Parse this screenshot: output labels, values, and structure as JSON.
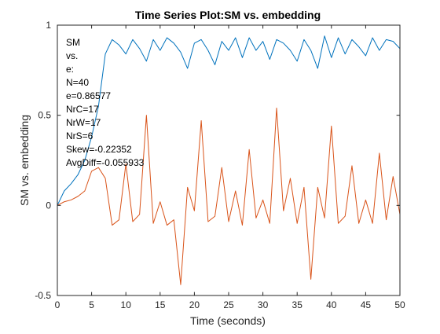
{
  "chart_data": {
    "type": "line",
    "title": "Time Series Plot:SM vs. embedding",
    "xlabel": "Time (seconds)",
    "ylabel": "SM vs. embedding",
    "xlim": [
      0,
      50
    ],
    "ylim": [
      -0.5,
      1
    ],
    "xticks": [
      "0",
      "5",
      "10",
      "15",
      "20",
      "25",
      "30",
      "35",
      "40",
      "45",
      "50"
    ],
    "yticks": [
      "-0.5",
      "0",
      "0.5",
      "1"
    ],
    "grid": false,
    "legend": "none",
    "annotations": [
      "SM",
      "vs.",
      "e:",
      "N=40",
      "e=0.86577",
      "NrC=17",
      "NrW=17",
      "NrS=6",
      "Skew=-0.22352",
      "AvgDiff=-0.055933"
    ],
    "series": [
      {
        "color": "#0072BD",
        "x": [
          0,
          1,
          2,
          3,
          4,
          5,
          6,
          7,
          8,
          9,
          10,
          11,
          12,
          13,
          14,
          15,
          16,
          17,
          18,
          19,
          20,
          21,
          22,
          23,
          24,
          25,
          26,
          27,
          28,
          29,
          30,
          31,
          32,
          33,
          34,
          35,
          36,
          37,
          38,
          39,
          40,
          41,
          42,
          43,
          44,
          45,
          46,
          47,
          48,
          49,
          50
        ],
        "y": [
          0,
          0.08,
          0.12,
          0.17,
          0.25,
          0.38,
          0.55,
          0.84,
          0.92,
          0.89,
          0.84,
          0.92,
          0.87,
          0.8,
          0.92,
          0.86,
          0.93,
          0.9,
          0.85,
          0.76,
          0.9,
          0.92,
          0.86,
          0.78,
          0.91,
          0.86,
          0.93,
          0.82,
          0.93,
          0.86,
          0.91,
          0.81,
          0.92,
          0.9,
          0.86,
          0.8,
          0.92,
          0.86,
          0.76,
          0.94,
          0.82,
          0.93,
          0.84,
          0.92,
          0.88,
          0.83,
          0.93,
          0.86,
          0.92,
          0.91,
          0.87
        ]
      },
      {
        "color": "#D95319",
        "x": [
          0,
          1,
          2,
          3,
          4,
          5,
          6,
          7,
          8,
          9,
          10,
          11,
          12,
          13,
          14,
          15,
          16,
          17,
          18,
          19,
          20,
          21,
          22,
          23,
          24,
          25,
          26,
          27,
          28,
          29,
          30,
          31,
          32,
          33,
          34,
          35,
          36,
          37,
          38,
          39,
          40,
          41,
          42,
          43,
          44,
          45,
          46,
          47,
          48,
          49,
          50
        ],
        "y": [
          0,
          0.02,
          0.03,
          0.05,
          0.08,
          0.19,
          0.21,
          0.15,
          -0.11,
          -0.08,
          0.23,
          -0.09,
          -0.05,
          0.5,
          -0.1,
          0.02,
          -0.11,
          -0.08,
          -0.44,
          0.1,
          -0.03,
          0.47,
          -0.09,
          -0.06,
          0.21,
          -0.09,
          0.08,
          -0.11,
          0.31,
          -0.07,
          0.03,
          -0.1,
          0.54,
          -0.03,
          0.15,
          -0.1,
          0.1,
          -0.41,
          0.1,
          -0.07,
          0.44,
          -0.1,
          -0.06,
          0.22,
          -0.1,
          0.03,
          -0.1,
          0.29,
          -0.08,
          0.16,
          -0.05
        ]
      }
    ]
  }
}
